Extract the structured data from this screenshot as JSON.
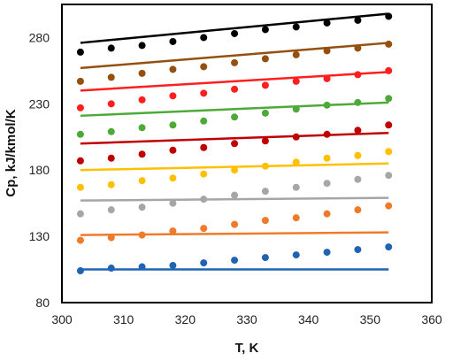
{
  "chart_data": {
    "type": "scatter",
    "xlabel": "T, K",
    "ylabel": "Cp,  kJ/kmol/K",
    "xlim": [
      300,
      360
    ],
    "ylim": [
      80,
      305
    ],
    "xticks": [
      300,
      310,
      320,
      330,
      340,
      350,
      360
    ],
    "yticks": [
      80,
      130,
      180,
      230,
      280
    ],
    "grid": false,
    "legend": "none",
    "x": [
      303,
      308,
      313,
      318,
      323,
      328,
      333,
      338,
      343,
      348,
      353
    ],
    "series": [
      {
        "color": "#1f64b3",
        "points": [
          104,
          106,
          107,
          108,
          110,
          112,
          114,
          116,
          118,
          120,
          122
        ],
        "line": [
          [
            303,
            105
          ],
          [
            353,
            105
          ]
        ]
      },
      {
        "color": "#ee7a2a",
        "points": [
          127,
          129,
          131,
          134,
          136,
          139,
          142,
          144,
          147,
          150,
          153
        ],
        "line": [
          [
            303,
            131
          ],
          [
            353,
            133
          ]
        ]
      },
      {
        "color": "#a6a6a6",
        "points": [
          147,
          150,
          152,
          155,
          158,
          161,
          164,
          167,
          170,
          173,
          176
        ],
        "line": [
          [
            303,
            157
          ],
          [
            353,
            159
          ]
        ]
      },
      {
        "color": "#ffc000",
        "points": [
          167,
          169,
          172,
          174,
          177,
          180,
          183,
          186,
          189,
          191,
          194
        ],
        "line": [
          [
            303,
            180
          ],
          [
            353,
            185
          ]
        ]
      },
      {
        "color": "#c00000",
        "points": [
          187,
          189,
          192,
          195,
          197,
          200,
          202,
          205,
          207,
          210,
          214
        ],
        "line": [
          [
            303,
            200
          ],
          [
            353,
            208
          ]
        ]
      },
      {
        "color": "#4eaa38",
        "points": [
          207,
          209,
          212,
          214,
          217,
          220,
          223,
          226,
          229,
          231,
          234
        ],
        "line": [
          [
            303,
            221
          ],
          [
            353,
            231
          ]
        ]
      },
      {
        "color": "#ff1f1f",
        "points": [
          227,
          230,
          233,
          236,
          238,
          241,
          244,
          247,
          249,
          252,
          255
        ],
        "line": [
          [
            303,
            240
          ],
          [
            353,
            254
          ]
        ]
      },
      {
        "color": "#954f0e",
        "points": [
          247,
          250,
          253,
          256,
          258,
          261,
          264,
          267,
          270,
          272,
          275
        ],
        "line": [
          [
            303,
            257
          ],
          [
            353,
            276
          ]
        ]
      },
      {
        "color": "#000000",
        "points": [
          269,
          272,
          274,
          277,
          280,
          283,
          286,
          288,
          291,
          293,
          296
        ],
        "line": [
          [
            303,
            276
          ],
          [
            353,
            298
          ]
        ]
      }
    ]
  }
}
